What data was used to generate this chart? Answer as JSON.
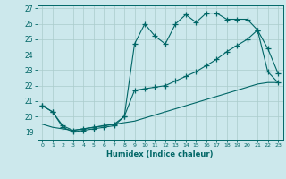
{
  "xlabel": "Humidex (Indice chaleur)",
  "bg_color": "#cce8ec",
  "grid_color": "#aacccc",
  "line_color": "#006666",
  "xlim": [
    -0.5,
    23.5
  ],
  "ylim": [
    18.5,
    27.2
  ],
  "yticks": [
    19,
    20,
    21,
    22,
    23,
    24,
    25,
    26,
    27
  ],
  "xticks": [
    0,
    1,
    2,
    3,
    4,
    5,
    6,
    7,
    8,
    9,
    10,
    11,
    12,
    13,
    14,
    15,
    16,
    17,
    18,
    19,
    20,
    21,
    22,
    23
  ],
  "line1_x": [
    0,
    1,
    2,
    3,
    4,
    5,
    6,
    7,
    8,
    9,
    10,
    11,
    12,
    13,
    14,
    15,
    16,
    17,
    18,
    19,
    20,
    21,
    22,
    23
  ],
  "line1_y": [
    20.7,
    20.3,
    19.3,
    19.0,
    19.1,
    19.2,
    19.3,
    19.4,
    20.0,
    24.7,
    26.0,
    25.2,
    24.7,
    26.0,
    26.6,
    26.1,
    26.7,
    26.7,
    26.3,
    26.3,
    26.3,
    25.6,
    24.4,
    22.8
  ],
  "line2_x": [
    0,
    1,
    2,
    3,
    4,
    5,
    6,
    7,
    8,
    9,
    10,
    11,
    12,
    13,
    14,
    15,
    16,
    17,
    18,
    19,
    20,
    21,
    22,
    23
  ],
  "line2_y": [
    20.7,
    20.3,
    19.4,
    19.1,
    19.2,
    19.3,
    19.4,
    19.5,
    20.0,
    21.7,
    21.8,
    21.9,
    22.0,
    22.3,
    22.6,
    22.9,
    23.3,
    23.7,
    24.2,
    24.6,
    25.0,
    25.6,
    22.9,
    22.2
  ],
  "line3_x": [
    0,
    1,
    2,
    3,
    4,
    5,
    6,
    7,
    8,
    9,
    10,
    11,
    12,
    13,
    14,
    15,
    16,
    17,
    18,
    19,
    20,
    21,
    22,
    23
  ],
  "line3_y": [
    19.5,
    19.3,
    19.2,
    19.1,
    19.2,
    19.3,
    19.4,
    19.5,
    19.6,
    19.7,
    19.9,
    20.1,
    20.3,
    20.5,
    20.7,
    20.9,
    21.1,
    21.3,
    21.5,
    21.7,
    21.9,
    22.1,
    22.2,
    22.2
  ]
}
